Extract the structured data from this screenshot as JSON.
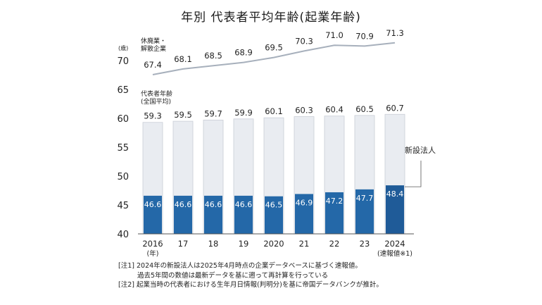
{
  "title": "年別 代表者平均年齢(起業年齢)",
  "chart_data": {
    "type": "bar",
    "ylim": [
      40,
      73
    ],
    "yticks": [
      40,
      45,
      50,
      55,
      60,
      65,
      70
    ],
    "y_unit_label": "(歳)",
    "categories": [
      "2016",
      "17",
      "18",
      "19",
      "2020",
      "21",
      "22",
      "23",
      "2024"
    ],
    "category_sublabels": {
      "0": "(年)",
      "8": "(速報値※1)"
    },
    "series": [
      {
        "name": "代表者年齢(全国平均)",
        "type": "bar",
        "color": "#e9ecf1",
        "values": [
          59.3,
          59.5,
          59.7,
          59.9,
          60.1,
          60.3,
          60.4,
          60.5,
          60.7
        ]
      },
      {
        "name": "新設法人",
        "type": "bar",
        "color": "#2468a8",
        "highlight_last": "#1f5b98",
        "values": [
          46.6,
          46.6,
          46.6,
          46.6,
          46.5,
          46.9,
          47.2,
          47.7,
          48.4
        ]
      },
      {
        "name": "休廃業・解散企業",
        "type": "line",
        "color": "#a7b0bc",
        "values": [
          67.4,
          68.1,
          68.5,
          68.9,
          69.5,
          70.3,
          71.0,
          70.9,
          71.3
        ]
      }
    ],
    "labels": {
      "closed": [
        "休廃業・",
        "解散企業"
      ],
      "average": [
        "代表者年齢",
        "(全国平均)"
      ],
      "new": "新設法人"
    }
  },
  "notes": [
    "[注1] 2024年の新設法人は2025年4月時点の企業データベースに基づく速報値。",
    "過去5年間の数値は最新データを基に遡って再計算を行っている",
    "[注2] 起業当時の代表者における生年月日情報(判明分)を基に帝国データバンクが推計。"
  ]
}
